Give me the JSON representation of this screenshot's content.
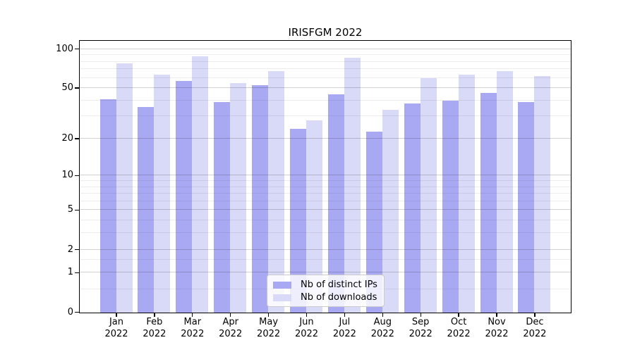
{
  "chart_data": {
    "type": "bar",
    "title": "IRISFGM 2022",
    "categories": [
      "Jan 2022",
      "Feb 2022",
      "Mar 2022",
      "Apr 2022",
      "May 2022",
      "Jun 2022",
      "Jul 2022",
      "Aug 2022",
      "Sep 2022",
      "Oct 2022",
      "Nov 2022",
      "Dec 2022"
    ],
    "series": [
      {
        "name": "Nb of distinct IPs",
        "color": "#a9a9f3",
        "values": [
          41,
          36,
          57,
          39,
          53,
          24,
          45,
          23,
          38,
          40,
          46,
          39
        ]
      },
      {
        "name": "Nb of downloads",
        "color": "#d9d9f8",
        "values": [
          78,
          64,
          88,
          55,
          68,
          28,
          86,
          34,
          60,
          64,
          68,
          62
        ]
      }
    ],
    "yscale": "log1p",
    "ylim": [
      0,
      115
    ],
    "yticks": [
      0,
      1,
      2,
      5,
      10,
      20,
      50,
      100
    ],
    "minor_yticks": [
      0.5,
      1.5,
      3,
      4,
      6,
      7,
      8,
      9,
      30,
      40,
      60,
      70,
      80,
      90
    ],
    "xlabel": "",
    "ylabel": "",
    "grid": true,
    "legend_position": "lower center"
  },
  "colors": {
    "background": "#ffffff",
    "axis": "#000000",
    "grid_major": "rgba(0,0,0,0.18)",
    "grid_minor": "rgba(0,0,0,0.07)",
    "legend_border": "#cccccc"
  }
}
